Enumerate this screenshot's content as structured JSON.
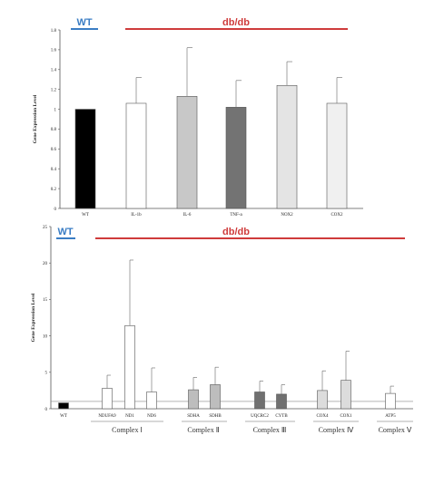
{
  "chart_data": [
    {
      "type": "bar",
      "ylabel": "Gene Expression Level",
      "ylim": [
        0,
        1.8
      ],
      "yticks": [
        "0",
        "0.2",
        "0.4",
        "0.6",
        "0.8",
        "1",
        "1.2",
        "1.4",
        "1.6",
        "1.8"
      ],
      "categories": [
        "WT",
        "IL-1b",
        "IL-6",
        "TNF-a",
        "NOX2",
        "COX2"
      ],
      "values": [
        1.0,
        1.06,
        1.13,
        1.02,
        1.24,
        1.06
      ],
      "errors": [
        0.0,
        0.26,
        0.49,
        0.27,
        0.24,
        0.26
      ],
      "fills": [
        "#000000",
        "#ffffff",
        "#c8c8c8",
        "#737373",
        "#e4e4e4",
        "#f0f0f0"
      ],
      "group_labels": {
        "wt": "WT",
        "treated": "db/db"
      },
      "grid": false
    },
    {
      "type": "bar",
      "ylabel": "Gene Expression Level",
      "ylim": [
        0,
        25
      ],
      "yticks": [
        "0",
        "5",
        "10",
        "15",
        "20",
        "25"
      ],
      "categories": [
        "WT",
        "NDUFA9",
        "ND1",
        "ND6",
        "SDHA",
        "SDHB",
        "UQCRC2",
        "CYTB",
        "COX4",
        "COX1",
        "ATP5"
      ],
      "values": [
        0.8,
        2.8,
        11.4,
        2.3,
        2.6,
        3.3,
        2.3,
        2.0,
        2.5,
        3.9,
        2.1
      ],
      "errors": [
        0.0,
        1.8,
        9.0,
        3.3,
        1.7,
        2.4,
        1.5,
        1.3,
        2.7,
        4.0,
        1.0
      ],
      "fills": [
        "#000000",
        "#ffffff",
        "#ffffff",
        "#ffffff",
        "#bdbdbd",
        "#bdbdbd",
        "#707070",
        "#707070",
        "#dcdcdc",
        "#dcdcdc",
        "#ffffff"
      ],
      "reference_line": 1,
      "complexes": [
        "Complex Ⅰ",
        "Complex Ⅱ",
        "Complex Ⅲ",
        "Complex Ⅳ",
        "Complex Ⅴ"
      ],
      "group_labels": {
        "wt": "WT",
        "treated": "db/db"
      },
      "grid": false
    }
  ],
  "colors": {
    "wt": "#3a7dc4",
    "treated": "#cf3b3b",
    "axis": "#555555"
  }
}
